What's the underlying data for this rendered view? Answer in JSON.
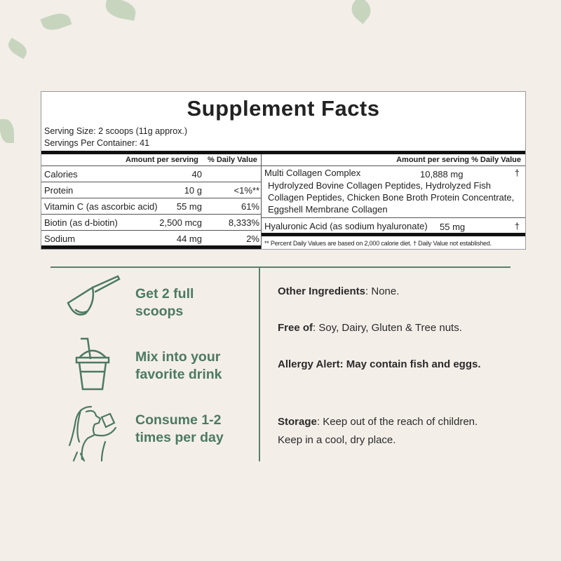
{
  "facts": {
    "title": "Supplement Facts",
    "serving_size": "Serving Size: 2 scoops (11g approx.)",
    "servings_per_container": "Servings Per Container: 41",
    "left_header": {
      "amount": "Amount per serving",
      "dv": "% Daily Value"
    },
    "left_rows": [
      {
        "name": "Calories",
        "amount": "40",
        "dv": ""
      },
      {
        "name": "Protein",
        "amount": "10 g",
        "dv": "<1%**"
      },
      {
        "name": "Vitamin C (as ascorbic acid)",
        "amount": "55 mg",
        "dv": "61%"
      },
      {
        "name": "Biotin (as d-biotin)",
        "amount": "2,500 mcg",
        "dv": "8,333%"
      },
      {
        "name": "Sodium",
        "amount": "44 mg",
        "dv": "2%"
      }
    ],
    "right_header": "Amount per serving % Daily Value",
    "right_rows": [
      {
        "name": "Multi Collagen Complex",
        "amount": "10,888 mg",
        "dv": "†",
        "sub": "Hydrolyzed Bovine Collagen Peptides, Hydrolyzed Fish Collagen Peptides, Chicken Bone Broth Protein Concentrate, Eggshell Membrane Collagen"
      },
      {
        "name": "Hyaluronic Acid (as sodium hyaluronate)",
        "amount": "55 mg",
        "dv": "†"
      }
    ],
    "footnote": "** Percent Daily Values are based on 2,000 calorie diet. † Daily Value not established."
  },
  "steps": [
    {
      "icon": "scoop-icon",
      "line1": "Get 2 full",
      "line2": "scoops"
    },
    {
      "icon": "cup-icon",
      "line1": "Mix into your",
      "line2": "favorite drink"
    },
    {
      "icon": "woman-drinking-icon",
      "line1": "Consume 1-2",
      "line2": "times per day"
    }
  ],
  "info": [
    {
      "label": "Other Ingredients",
      "text": ": None."
    },
    {
      "label": "Free of",
      "text": ": Soy, Dairy, Gluten & Tree nuts."
    },
    {
      "label": "Allergy Alert: May contain fish and eggs.",
      "text": ""
    },
    {
      "label": "Storage",
      "text": ": Keep out of the reach of children. Keep in a cool, dry place."
    }
  ],
  "colors": {
    "accent": "#4c7a60",
    "background": "#f4eee9"
  }
}
